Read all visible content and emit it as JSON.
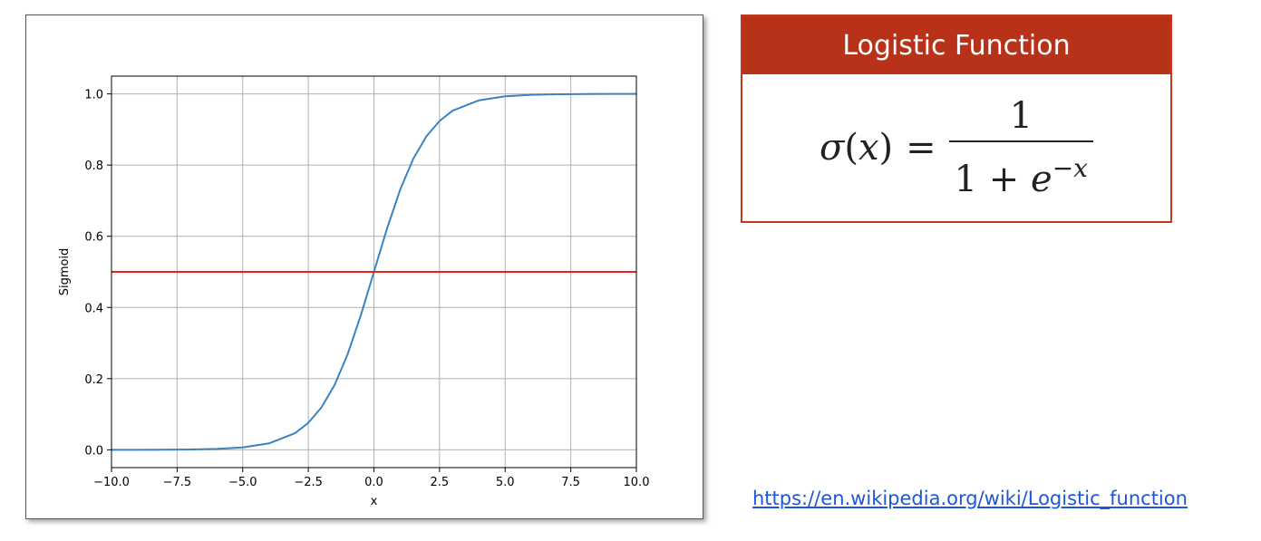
{
  "chart_data": {
    "type": "line",
    "title": "",
    "xlabel": "x",
    "ylabel": "Sigmoid",
    "xlim": [
      -10.0,
      10.0
    ],
    "ylim": [
      -0.05,
      1.05
    ],
    "grid": true,
    "xticks": [
      -10.0,
      -7.5,
      -5.0,
      -2.5,
      0.0,
      2.5,
      5.0,
      7.5,
      10.0
    ],
    "xtick_labels": [
      "−10.0",
      "−7.5",
      "−5.0",
      "−2.5",
      "0.0",
      "2.5",
      "5.0",
      "7.5",
      "10.0"
    ],
    "yticks": [
      0.0,
      0.2,
      0.4,
      0.6,
      0.8,
      1.0
    ],
    "ytick_labels": [
      "0.0",
      "0.2",
      "0.4",
      "0.6",
      "0.8",
      "1.0"
    ],
    "series": [
      {
        "color": "#3a83c0",
        "x": [
          -10,
          -9,
          -8,
          -7,
          -6,
          -5,
          -4,
          -3,
          -2.5,
          -2,
          -1.5,
          -1,
          -0.5,
          0,
          0.5,
          1,
          1.5,
          2,
          2.5,
          3,
          4,
          5,
          6,
          7,
          8,
          9,
          10
        ],
        "y": [
          5e-05,
          0.0001,
          0.0003,
          0.0009,
          0.0025,
          0.0067,
          0.018,
          0.047,
          0.076,
          0.119,
          0.182,
          0.269,
          0.378,
          0.5,
          0.622,
          0.731,
          0.818,
          0.881,
          0.924,
          0.953,
          0.982,
          0.9933,
          0.9975,
          0.9991,
          0.9997,
          0.9999,
          0.99995
        ]
      },
      {
        "color": "#e8221b",
        "x": [
          -10,
          10
        ],
        "y": [
          0.5,
          0.5
        ]
      }
    ]
  },
  "formula": {
    "title": "Logistic Function",
    "lhs_symbol": "σ",
    "lhs_open": "(",
    "lhs_var": "x",
    "lhs_close": ")",
    "equals": "=",
    "numerator": "1",
    "denominator_base": "1 + ",
    "denominator_e": "e",
    "denominator_exp": "−x"
  },
  "link": {
    "text": "https://en.wikipedia.org/wiki/Logistic_function"
  }
}
